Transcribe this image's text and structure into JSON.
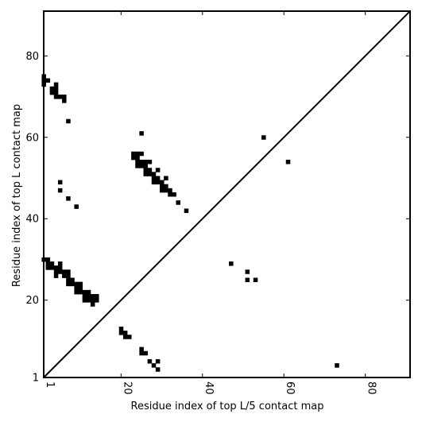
{
  "chart_data": {
    "type": "heatmap",
    "title": "",
    "xlabel": "Residue index of top L/5 contact map",
    "ylabel": "Residue index of top L contact map",
    "xlim": [
      1,
      91
    ],
    "ylim": [
      1,
      91
    ],
    "x_ticks": [
      1,
      20,
      40,
      60,
      80
    ],
    "y_ticks": [
      1,
      20,
      40,
      60,
      80
    ],
    "diagonal_line": true,
    "grid": false,
    "cell_color": "#000000",
    "upper_contacts": [
      [
        1,
        74
      ],
      [
        1,
        75
      ],
      [
        1,
        73
      ],
      [
        2,
        74
      ],
      [
        3,
        72
      ],
      [
        3,
        71
      ],
      [
        4,
        72
      ],
      [
        4,
        71
      ],
      [
        4,
        73
      ],
      [
        4,
        70
      ],
      [
        5,
        70
      ],
      [
        6,
        70
      ],
      [
        6,
        69
      ],
      [
        7,
        64
      ],
      [
        25,
        61
      ],
      [
        23,
        56
      ],
      [
        24,
        56
      ],
      [
        25,
        56
      ],
      [
        23,
        55
      ],
      [
        24,
        55
      ],
      [
        24,
        54
      ],
      [
        25,
        54
      ],
      [
        26,
        54
      ],
      [
        27,
        54
      ],
      [
        24,
        53
      ],
      [
        25,
        53
      ],
      [
        26,
        53
      ],
      [
        26,
        52
      ],
      [
        27,
        52
      ],
      [
        29,
        52
      ],
      [
        26,
        51
      ],
      [
        27,
        51
      ],
      [
        28,
        51
      ],
      [
        28,
        50
      ],
      [
        29,
        50
      ],
      [
        31,
        50
      ],
      [
        28,
        49
      ],
      [
        29,
        49
      ],
      [
        30,
        49
      ],
      [
        30,
        48
      ],
      [
        31,
        48
      ],
      [
        30,
        47
      ],
      [
        31,
        47
      ],
      [
        32,
        47
      ],
      [
        32,
        46
      ],
      [
        33,
        46
      ],
      [
        34,
        44
      ],
      [
        36,
        42
      ],
      [
        5,
        49
      ],
      [
        5,
        47
      ],
      [
        7,
        45
      ],
      [
        9,
        43
      ],
      [
        55,
        60
      ],
      [
        61,
        54
      ]
    ],
    "lower_contacts": [
      [
        1,
        30
      ],
      [
        2,
        30
      ],
      [
        2,
        29
      ],
      [
        3,
        29
      ],
      [
        2,
        28
      ],
      [
        3,
        28
      ],
      [
        4,
        28
      ],
      [
        5,
        29
      ],
      [
        5,
        28
      ],
      [
        4,
        27
      ],
      [
        5,
        27
      ],
      [
        6,
        27
      ],
      [
        7,
        27
      ],
      [
        4,
        26
      ],
      [
        6,
        26
      ],
      [
        7,
        26
      ],
      [
        7,
        25
      ],
      [
        8,
        25
      ],
      [
        7,
        24
      ],
      [
        8,
        24
      ],
      [
        9,
        24
      ],
      [
        10,
        24
      ],
      [
        9,
        23
      ],
      [
        10,
        23
      ],
      [
        9,
        22
      ],
      [
        10,
        22
      ],
      [
        11,
        22
      ],
      [
        12,
        22
      ],
      [
        11,
        21
      ],
      [
        12,
        21
      ],
      [
        13,
        21
      ],
      [
        14,
        21
      ],
      [
        11,
        20
      ],
      [
        12,
        20
      ],
      [
        13,
        20
      ],
      [
        14,
        20
      ],
      [
        13,
        19
      ],
      [
        20,
        13
      ],
      [
        20,
        12
      ],
      [
        21,
        12
      ],
      [
        21,
        11
      ],
      [
        22,
        11
      ],
      [
        25,
        8
      ],
      [
        25,
        7
      ],
      [
        26,
        7
      ],
      [
        27,
        5
      ],
      [
        29,
        5
      ],
      [
        28,
        4
      ],
      [
        29,
        3
      ],
      [
        47,
        29
      ],
      [
        51,
        27
      ],
      [
        51,
        25
      ],
      [
        53,
        25
      ],
      [
        73,
        4
      ]
    ]
  }
}
